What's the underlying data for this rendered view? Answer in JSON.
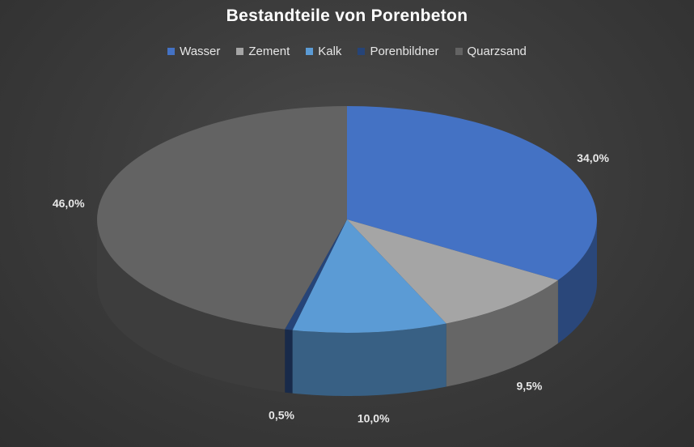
{
  "chart_data": {
    "type": "pie",
    "title": "Bestandteile von Porenbeton",
    "legend_position": "top",
    "categories": [
      "Wasser",
      "Zement",
      "Kalk",
      "Porenbildner",
      "Quarzsand"
    ],
    "values": [
      34.0,
      9.5,
      10.0,
      0.5,
      46.0
    ],
    "data_labels": [
      "34,0%",
      "9,5%",
      "10,0%",
      "0,5%",
      "46,0%"
    ],
    "colors": [
      "#4472c4",
      "#a5a5a5",
      "#5b9bd5",
      "#264478",
      "#636363"
    ],
    "three_d": true
  }
}
